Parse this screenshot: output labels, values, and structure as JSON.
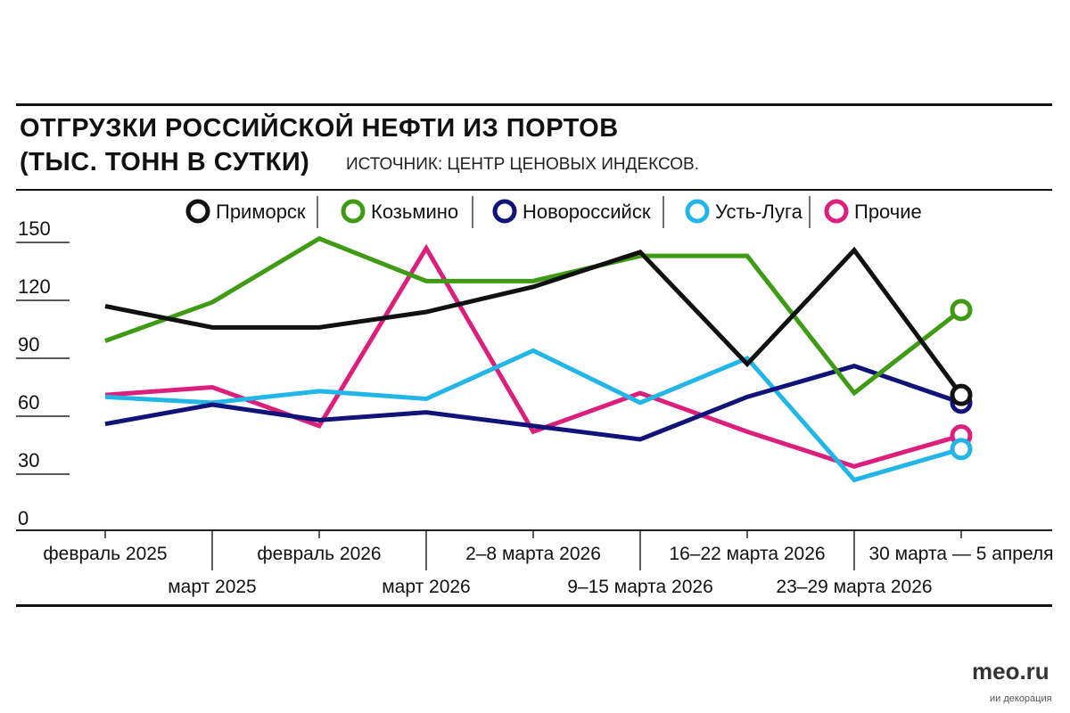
{
  "chart_data": {
    "type": "line",
    "title": "ОТГРУЗКИ РОССИЙСКОЙ НЕФТИ ИЗ ПОРТОВ",
    "subtitle": "(ТЫС. ТОНН В СУТКИ)",
    "source": "ИСТОЧНИК: ЦЕНТР ЦЕНОВЫХ ИНДЕКСОВ.",
    "categories": [
      "февраль 2025",
      "март 2025",
      "февраль 2026",
      "март 2026",
      "2–8 марта 2026",
      "9–15 марта 2026",
      "16–22 марта 2026",
      "23–29 марта 2026",
      "30 марта — 5 апреля"
    ],
    "yticks": [
      0,
      30,
      60,
      90,
      120,
      150
    ],
    "ylim": [
      0,
      160
    ],
    "grid": false,
    "legend": "top",
    "series": [
      {
        "name": "Приморск",
        "color": "#111111",
        "values": [
          117,
          106,
          106,
          114,
          127,
          145,
          87,
          146,
          71
        ]
      },
      {
        "name": "Козьмино",
        "color": "#3f9a14",
        "values": [
          99,
          119,
          152,
          130,
          130,
          143,
          143,
          72,
          115
        ]
      },
      {
        "name": "Новороссийск",
        "color": "#12137a",
        "values": [
          56,
          66,
          58,
          62,
          55,
          48,
          70,
          86,
          67
        ]
      },
      {
        "name": "Усть-Луга",
        "color": "#22b6e8",
        "values": [
          70,
          67,
          73,
          69,
          94,
          67,
          90,
          27,
          43
        ]
      },
      {
        "name": "Прочие",
        "color": "#dc1e7c",
        "values": [
          71,
          75,
          55,
          147,
          52,
          72,
          52,
          34,
          50
        ]
      }
    ]
  },
  "watermark": {
    "site": "meo.ru",
    "caption": "ии декорация"
  }
}
